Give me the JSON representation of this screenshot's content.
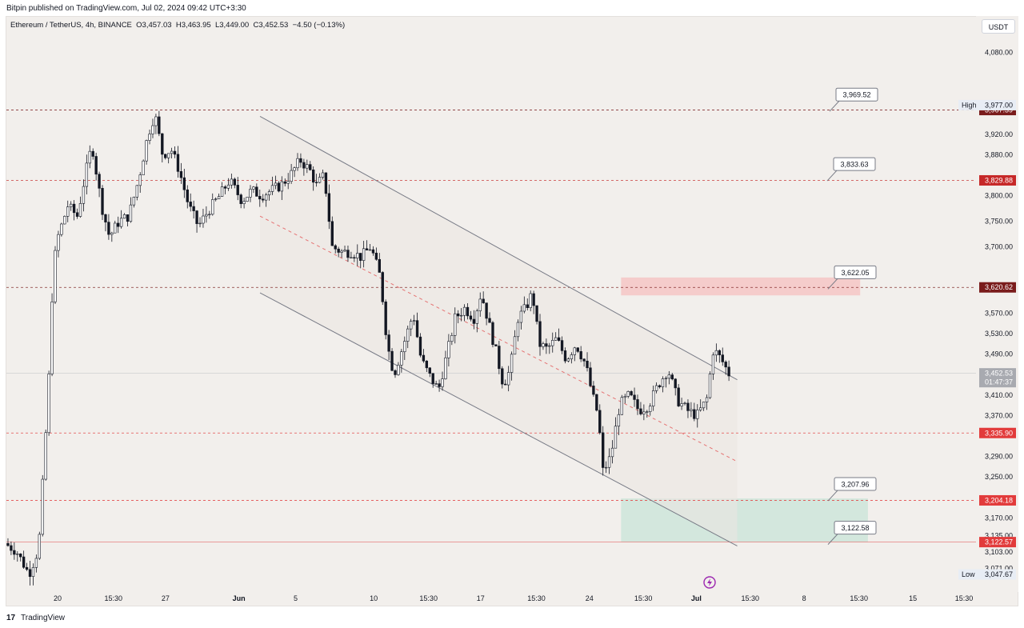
{
  "header": {
    "published": "Bitpin published on TradingView.com, Jul 02, 2024 09:42 UTC+3:30"
  },
  "legend": {
    "symbol": "Ethereum / TetherUS, 4h, BINANCE",
    "open": "O3,457.03",
    "high": "H3,463.95",
    "low": "L3,449.00",
    "close": "C3,452.53",
    "change": "−4.50 (−0.13%)"
  },
  "currency_button": "USDT",
  "footer": {
    "logo": "17",
    "brand": "TradingView"
  },
  "colors": {
    "background": "#f2efec",
    "up": "#ffffff",
    "down": "#131722",
    "dashed_level": "#c2185b",
    "dark_red_label": "#7a1c1c",
    "red_label": "#e23b3b",
    "price_gray": "#a8aab0",
    "resistance_zone": "#f6c6c6",
    "support_zone": "#cfe6dc",
    "channel": "#787b86"
  },
  "chart_data": {
    "type": "candlestick",
    "symbol": "ETHUSDT",
    "interval": "4h",
    "ylim": [
      3025,
      4120
    ],
    "y_ticks": [
      {
        "label": "4,080.00",
        "value": 4080
      },
      {
        "label": "3,920.00",
        "value": 3920
      },
      {
        "label": "3,880.00",
        "value": 3880
      },
      {
        "label": "3,800.00",
        "value": 3800
      },
      {
        "label": "3,750.00",
        "value": 3750
      },
      {
        "label": "3,700.00",
        "value": 3700
      },
      {
        "label": "3,570.00",
        "value": 3570
      },
      {
        "label": "3,530.00",
        "value": 3530
      },
      {
        "label": "3,490.00",
        "value": 3490
      },
      {
        "label": "3,410.00",
        "value": 3410
      },
      {
        "label": "3,370.00",
        "value": 3370
      },
      {
        "label": "3,290.00",
        "value": 3290
      },
      {
        "label": "3,250.00",
        "value": 3250
      },
      {
        "label": "3,170.00",
        "value": 3170
      },
      {
        "label": "3,135.00",
        "value": 3135
      },
      {
        "label": "3,103.00",
        "value": 3103
      },
      {
        "label": "3,071.00",
        "value": 3071
      }
    ],
    "x_ticks": [
      {
        "label": "20",
        "pos": 0.025
      },
      {
        "label": "15:30",
        "pos": 0.085
      },
      {
        "label": "27",
        "pos": 0.141
      },
      {
        "label": "Jun",
        "pos": 0.22
      },
      {
        "label": "5",
        "pos": 0.281
      },
      {
        "label": "10",
        "pos": 0.365
      },
      {
        "label": "15:30",
        "pos": 0.424
      },
      {
        "label": "17",
        "pos": 0.48
      },
      {
        "label": "15:30",
        "pos": 0.54
      },
      {
        "label": "24",
        "pos": 0.597
      },
      {
        "label": "15:30",
        "pos": 0.655
      },
      {
        "label": "Jul",
        "pos": 0.712
      },
      {
        "label": "15:30",
        "pos": 0.77
      },
      {
        "label": "8",
        "pos": 0.828
      },
      {
        "label": "15:30",
        "pos": 0.887
      },
      {
        "label": "15",
        "pos": 0.945
      },
      {
        "label": "15:30",
        "pos": 1.0
      }
    ],
    "price_path": [
      [
        0.0,
        3120
      ],
      [
        0.012,
        3105
      ],
      [
        0.025,
        3060
      ],
      [
        0.035,
        3110
      ],
      [
        0.045,
        3420
      ],
      [
        0.05,
        3660
      ],
      [
        0.055,
        3720
      ],
      [
        0.065,
        3780
      ],
      [
        0.075,
        3760
      ],
      [
        0.083,
        3840
      ],
      [
        0.09,
        3900
      ],
      [
        0.1,
        3780
      ],
      [
        0.108,
        3720
      ],
      [
        0.118,
        3750
      ],
      [
        0.128,
        3760
      ],
      [
        0.138,
        3830
      ],
      [
        0.148,
        3920
      ],
      [
        0.155,
        3960
      ],
      [
        0.163,
        3880
      ],
      [
        0.172,
        3890
      ],
      [
        0.18,
        3850
      ],
      [
        0.19,
        3780
      ],
      [
        0.2,
        3740
      ],
      [
        0.21,
        3770
      ],
      [
        0.222,
        3800
      ],
      [
        0.232,
        3830
      ],
      [
        0.245,
        3790
      ],
      [
        0.255,
        3810
      ],
      [
        0.265,
        3800
      ],
      [
        0.275,
        3810
      ],
      [
        0.285,
        3820
      ],
      [
        0.295,
        3840
      ],
      [
        0.305,
        3870
      ],
      [
        0.315,
        3850
      ],
      [
        0.322,
        3820
      ],
      [
        0.33,
        3840
      ],
      [
        0.338,
        3700
      ],
      [
        0.348,
        3690
      ],
      [
        0.358,
        3690
      ],
      [
        0.368,
        3680
      ],
      [
        0.378,
        3700
      ],
      [
        0.388,
        3640
      ],
      [
        0.395,
        3510
      ],
      [
        0.402,
        3450
      ],
      [
        0.412,
        3510
      ],
      [
        0.422,
        3570
      ],
      [
        0.43,
        3480
      ],
      [
        0.438,
        3450
      ],
      [
        0.448,
        3420
      ],
      [
        0.458,
        3500
      ],
      [
        0.465,
        3560
      ],
      [
        0.475,
        3580
      ],
      [
        0.485,
        3560
      ],
      [
        0.492,
        3610
      ],
      [
        0.5,
        3550
      ],
      [
        0.508,
        3490
      ],
      [
        0.515,
        3430
      ],
      [
        0.522,
        3460
      ],
      [
        0.53,
        3560
      ],
      [
        0.538,
        3580
      ],
      [
        0.545,
        3610
      ],
      [
        0.552,
        3510
      ],
      [
        0.56,
        3500
      ],
      [
        0.57,
        3520
      ],
      [
        0.58,
        3480
      ],
      [
        0.59,
        3510
      ],
      [
        0.6,
        3470
      ],
      [
        0.607,
        3410
      ],
      [
        0.613,
        3370
      ],
      [
        0.618,
        3260
      ],
      [
        0.626,
        3290
      ],
      [
        0.635,
        3390
      ],
      [
        0.645,
        3410
      ],
      [
        0.655,
        3380
      ],
      [
        0.665,
        3390
      ],
      [
        0.675,
        3430
      ],
      [
        0.685,
        3460
      ],
      [
        0.695,
        3400
      ],
      [
        0.705,
        3380
      ],
      [
        0.715,
        3370
      ],
      [
        0.725,
        3400
      ],
      [
        0.732,
        3500
      ],
      [
        0.74,
        3480
      ],
      [
        0.748,
        3452
      ]
    ],
    "levels": [
      {
        "price": 3967.39,
        "label": "3,967.39",
        "style": "dashed",
        "label_color": "#7a1c1c"
      },
      {
        "price": 3829.88,
        "label": "3,829.88",
        "style": "dashed",
        "label_color": "#c62828"
      },
      {
        "price": 3620.62,
        "label": "3,620.62",
        "style": "dashed",
        "label_color": "#7a1c1c"
      },
      {
        "price": 3335.9,
        "label": "3,335.90",
        "style": "dashed",
        "label_color": "#e23b3b"
      },
      {
        "price": 3204.18,
        "label": "3,204.18",
        "style": "dashed",
        "label_color": "#e23b3b"
      },
      {
        "price": 3122.57,
        "label": "3,122.57",
        "style": "solid",
        "label_color": "#e23b3b"
      }
    ],
    "current_price": {
      "price": 3452.53,
      "label": "3,452.53",
      "countdown": "01:47:37"
    },
    "high": {
      "label": "High",
      "value": "3,977.00",
      "price": 3977
    },
    "low": {
      "label": "Low",
      "value": "3,047.67",
      "price": 3047.67
    },
    "callouts": [
      {
        "label": "3,969.52",
        "price": 3969.52
      },
      {
        "label": "3,833.63",
        "price": 3833.63
      },
      {
        "label": "3,622.05",
        "price": 3622.05
      },
      {
        "label": "3,207.96",
        "price": 3207.96
      },
      {
        "label": "3,122.58",
        "price": 3122.58
      }
    ],
    "zones": [
      {
        "name": "resistance",
        "x0": 0.635,
        "x1": 0.882,
        "p0": 3605,
        "p1": 3640
      },
      {
        "name": "support",
        "x0": 0.635,
        "x1": 0.89,
        "p0": 3122.58,
        "p1": 3207.96
      }
    ],
    "channel": {
      "upper": [
        [
          0.262,
          3955
        ],
        [
          0.755,
          3440
        ]
      ],
      "lower": [
        [
          0.262,
          3610
        ],
        [
          0.755,
          3115
        ]
      ],
      "mid": [
        [
          0.262,
          3760
        ],
        [
          0.755,
          3280
        ]
      ]
    }
  }
}
